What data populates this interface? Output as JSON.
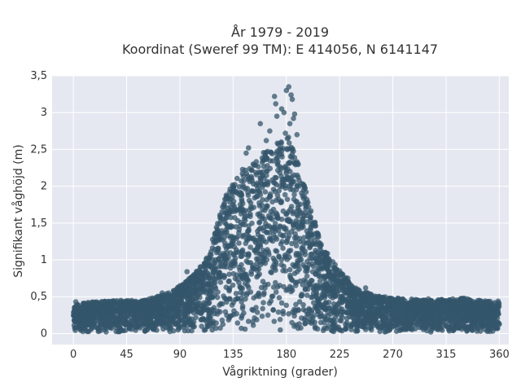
{
  "chart_data": {
    "type": "scatter",
    "title_line1": "År 1979 - 2019",
    "title_line2": "Koordinat (Sweref 99 TM): E 414056, N 6141147",
    "xlabel": "Vågriktning (grader)",
    "ylabel": "Signifikant våghöjd (m)",
    "xlim": [
      -18,
      368
    ],
    "ylim": [
      -0.15,
      3.5
    ],
    "xticks": [
      0,
      45,
      90,
      135,
      180,
      225,
      270,
      315,
      360
    ],
    "xtick_labels": [
      "0",
      "45",
      "90",
      "135",
      "180",
      "225",
      "270",
      "315",
      "360"
    ],
    "yticks": [
      0,
      0.5,
      1,
      1.5,
      2,
      2.5,
      3,
      3.5
    ],
    "ytick_labels": [
      "0",
      "0,5",
      "1",
      "1,5",
      "2",
      "2,5",
      "3",
      "3,5"
    ],
    "grid": true,
    "marker_color": "#34566b",
    "plot_background": "#e5e8f0",
    "envelope": {
      "direction": [
        0,
        30,
        60,
        80,
        95,
        110,
        120,
        130,
        140,
        150,
        160,
        170,
        180,
        190,
        200,
        210,
        225,
        240,
        260,
        300,
        330,
        360
      ],
      "max_height": [
        0.4,
        0.45,
        0.45,
        0.55,
        0.7,
        0.95,
        1.4,
        1.95,
        2.2,
        2.3,
        2.45,
        2.6,
        2.75,
        2.3,
        1.75,
        1.2,
        0.85,
        0.6,
        0.5,
        0.45,
        0.48,
        0.42
      ]
    },
    "outliers": [
      {
        "x": 170,
        "y": 3.22
      },
      {
        "x": 171,
        "y": 3.12
      },
      {
        "x": 180,
        "y": 3.3
      },
      {
        "x": 182,
        "y": 3.35
      },
      {
        "x": 184,
        "y": 3.24
      },
      {
        "x": 176,
        "y": 3.05
      },
      {
        "x": 178,
        "y": 3.0
      },
      {
        "x": 185,
        "y": 3.18
      },
      {
        "x": 187,
        "y": 2.98
      },
      {
        "x": 172,
        "y": 2.95
      },
      {
        "x": 183,
        "y": 2.85
      },
      {
        "x": 158,
        "y": 2.85
      },
      {
        "x": 148,
        "y": 2.52
      },
      {
        "x": 146,
        "y": 2.45
      },
      {
        "x": 166,
        "y": 2.75
      },
      {
        "x": 163,
        "y": 2.62
      },
      {
        "x": 189,
        "y": 2.7
      },
      {
        "x": 186,
        "y": 2.92
      },
      {
        "x": 96,
        "y": 0.84
      },
      {
        "x": 75,
        "y": 0.55
      },
      {
        "x": 88,
        "y": 0.62
      },
      {
        "x": 247,
        "y": 0.62
      },
      {
        "x": 237,
        "y": 0.52
      },
      {
        "x": 232,
        "y": 0.75
      },
      {
        "x": 225,
        "y": 0.85
      },
      {
        "x": 330,
        "y": 0.48
      },
      {
        "x": 300,
        "y": 0.47
      },
      {
        "x": 40,
        "y": 0.45
      },
      {
        "x": 2,
        "y": 0.43
      },
      {
        "x": 359,
        "y": 0.44
      }
    ]
  }
}
